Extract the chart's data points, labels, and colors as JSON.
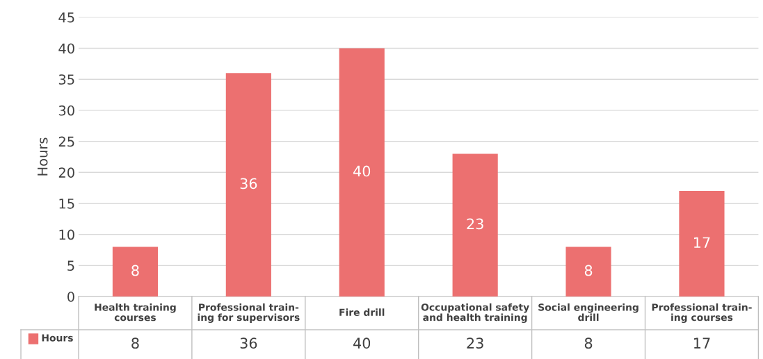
{
  "chart_data": {
    "type": "bar",
    "ylabel": "Hours",
    "categories": [
      "Health training\ncourses",
      "Professional train-\ning for supervisors",
      "Fire drill",
      "Occupational safety\nand health training",
      "Social engineering\ndrill",
      "Professional train-\ning courses"
    ],
    "series": [
      {
        "name": "Hours",
        "color": "#ec7070",
        "values": [
          8,
          36,
          40,
          23,
          8,
          17
        ],
        "value_labels": [
          "8",
          "36",
          "40",
          "23",
          "8",
          "17"
        ]
      }
    ],
    "ylim": [
      0,
      45
    ],
    "yticks": [
      0,
      5,
      10,
      15,
      20,
      25,
      30,
      35,
      40,
      45
    ],
    "grid": "y",
    "data_labels": true,
    "annotations": [
      "8",
      "36",
      "40",
      "23",
      "8",
      "17"
    ],
    "legend": "bottom left"
  }
}
